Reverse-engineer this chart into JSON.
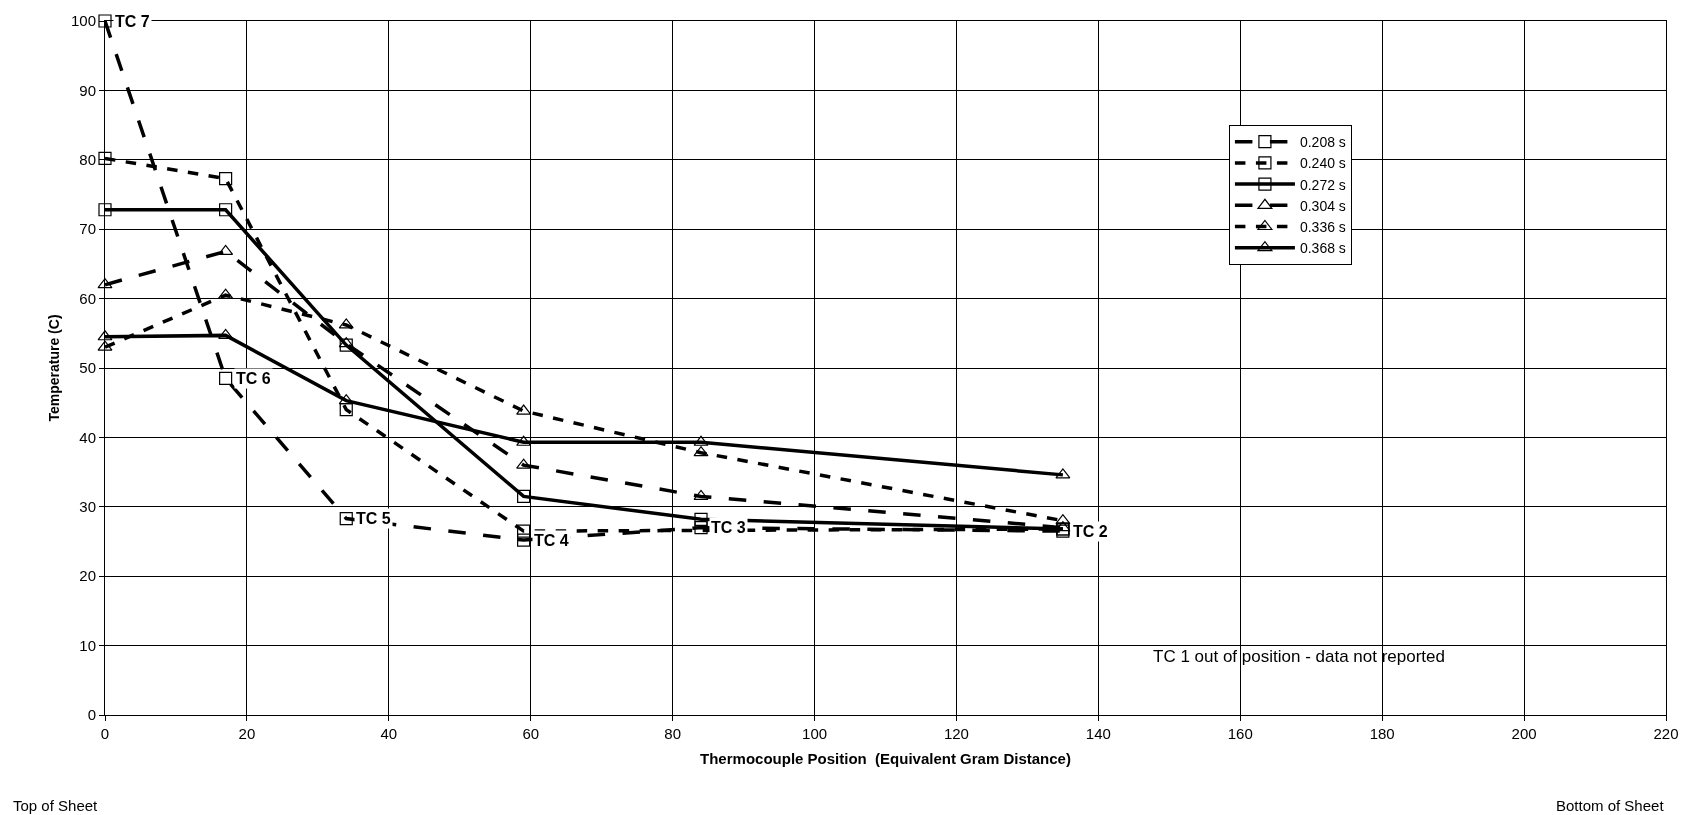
{
  "chart_data": {
    "type": "line",
    "xlabel": "Thermocouple Position  (Equivalent Gram Distance)",
    "ylabel": "Temperature (C)",
    "x": [
      0,
      17,
      34,
      59,
      84,
      135
    ],
    "series": [
      {
        "name": "0.208 s",
        "color": "#000000",
        "marker": "square",
        "line_style": "dashed",
        "values": [
          100,
          48.5,
          28.3,
          25.2,
          27,
          26.5
        ]
      },
      {
        "name": "0.240 s",
        "color": "#000000",
        "marker": "square",
        "line_style": "dotted",
        "values": [
          80.2,
          77.3,
          44,
          26.5,
          null,
          26.8
        ]
      },
      {
        "name": "0.272 s",
        "color": "#000000",
        "marker": "square",
        "line_style": "solid",
        "values": [
          72.8,
          72.8,
          53.3,
          31.5,
          28.2,
          26.8
        ]
      },
      {
        "name": "0.304 s",
        "color": "#000000",
        "marker": "triangle",
        "line_style": "dashed",
        "values": [
          62,
          66.8,
          53.5,
          36,
          31.5,
          27
        ]
      },
      {
        "name": "0.336 s",
        "color": "#000000",
        "marker": "triangle",
        "line_style": "dotted",
        "values": [
          53,
          60.5,
          56.2,
          43.8,
          37.8,
          28
        ]
      },
      {
        "name": "0.368 s",
        "color": "#000000",
        "marker": "triangle",
        "line_style": "solid",
        "values": [
          54.5,
          54.7,
          45.3,
          39.3,
          39.3,
          34.6
        ]
      }
    ],
    "xlim": [
      0,
      220
    ],
    "xticks": [
      0,
      20,
      40,
      60,
      80,
      100,
      120,
      140,
      160,
      180,
      200,
      220
    ],
    "ylim": [
      0,
      100
    ],
    "yticks": [
      0,
      10,
      20,
      30,
      40,
      50,
      60,
      70,
      80,
      90,
      100
    ],
    "grid": true,
    "legend": "top right",
    "annotations": [
      {
        "text": "TC 7",
        "x": 0,
        "y": 100
      },
      {
        "text": "TC 6",
        "x": 17,
        "y": 48.5
      },
      {
        "text": "TC 5",
        "x": 34,
        "y": 28.3
      },
      {
        "text": "TC 4",
        "x": 59,
        "y": 25.2
      },
      {
        "text": "TC 3",
        "x": 84,
        "y": 27
      },
      {
        "text": "TC 2",
        "x": 135,
        "y": 26.5
      },
      "TC 1 out of position - data not reported",
      "Top of Sheet",
      "Bottom of Sheet"
    ]
  }
}
